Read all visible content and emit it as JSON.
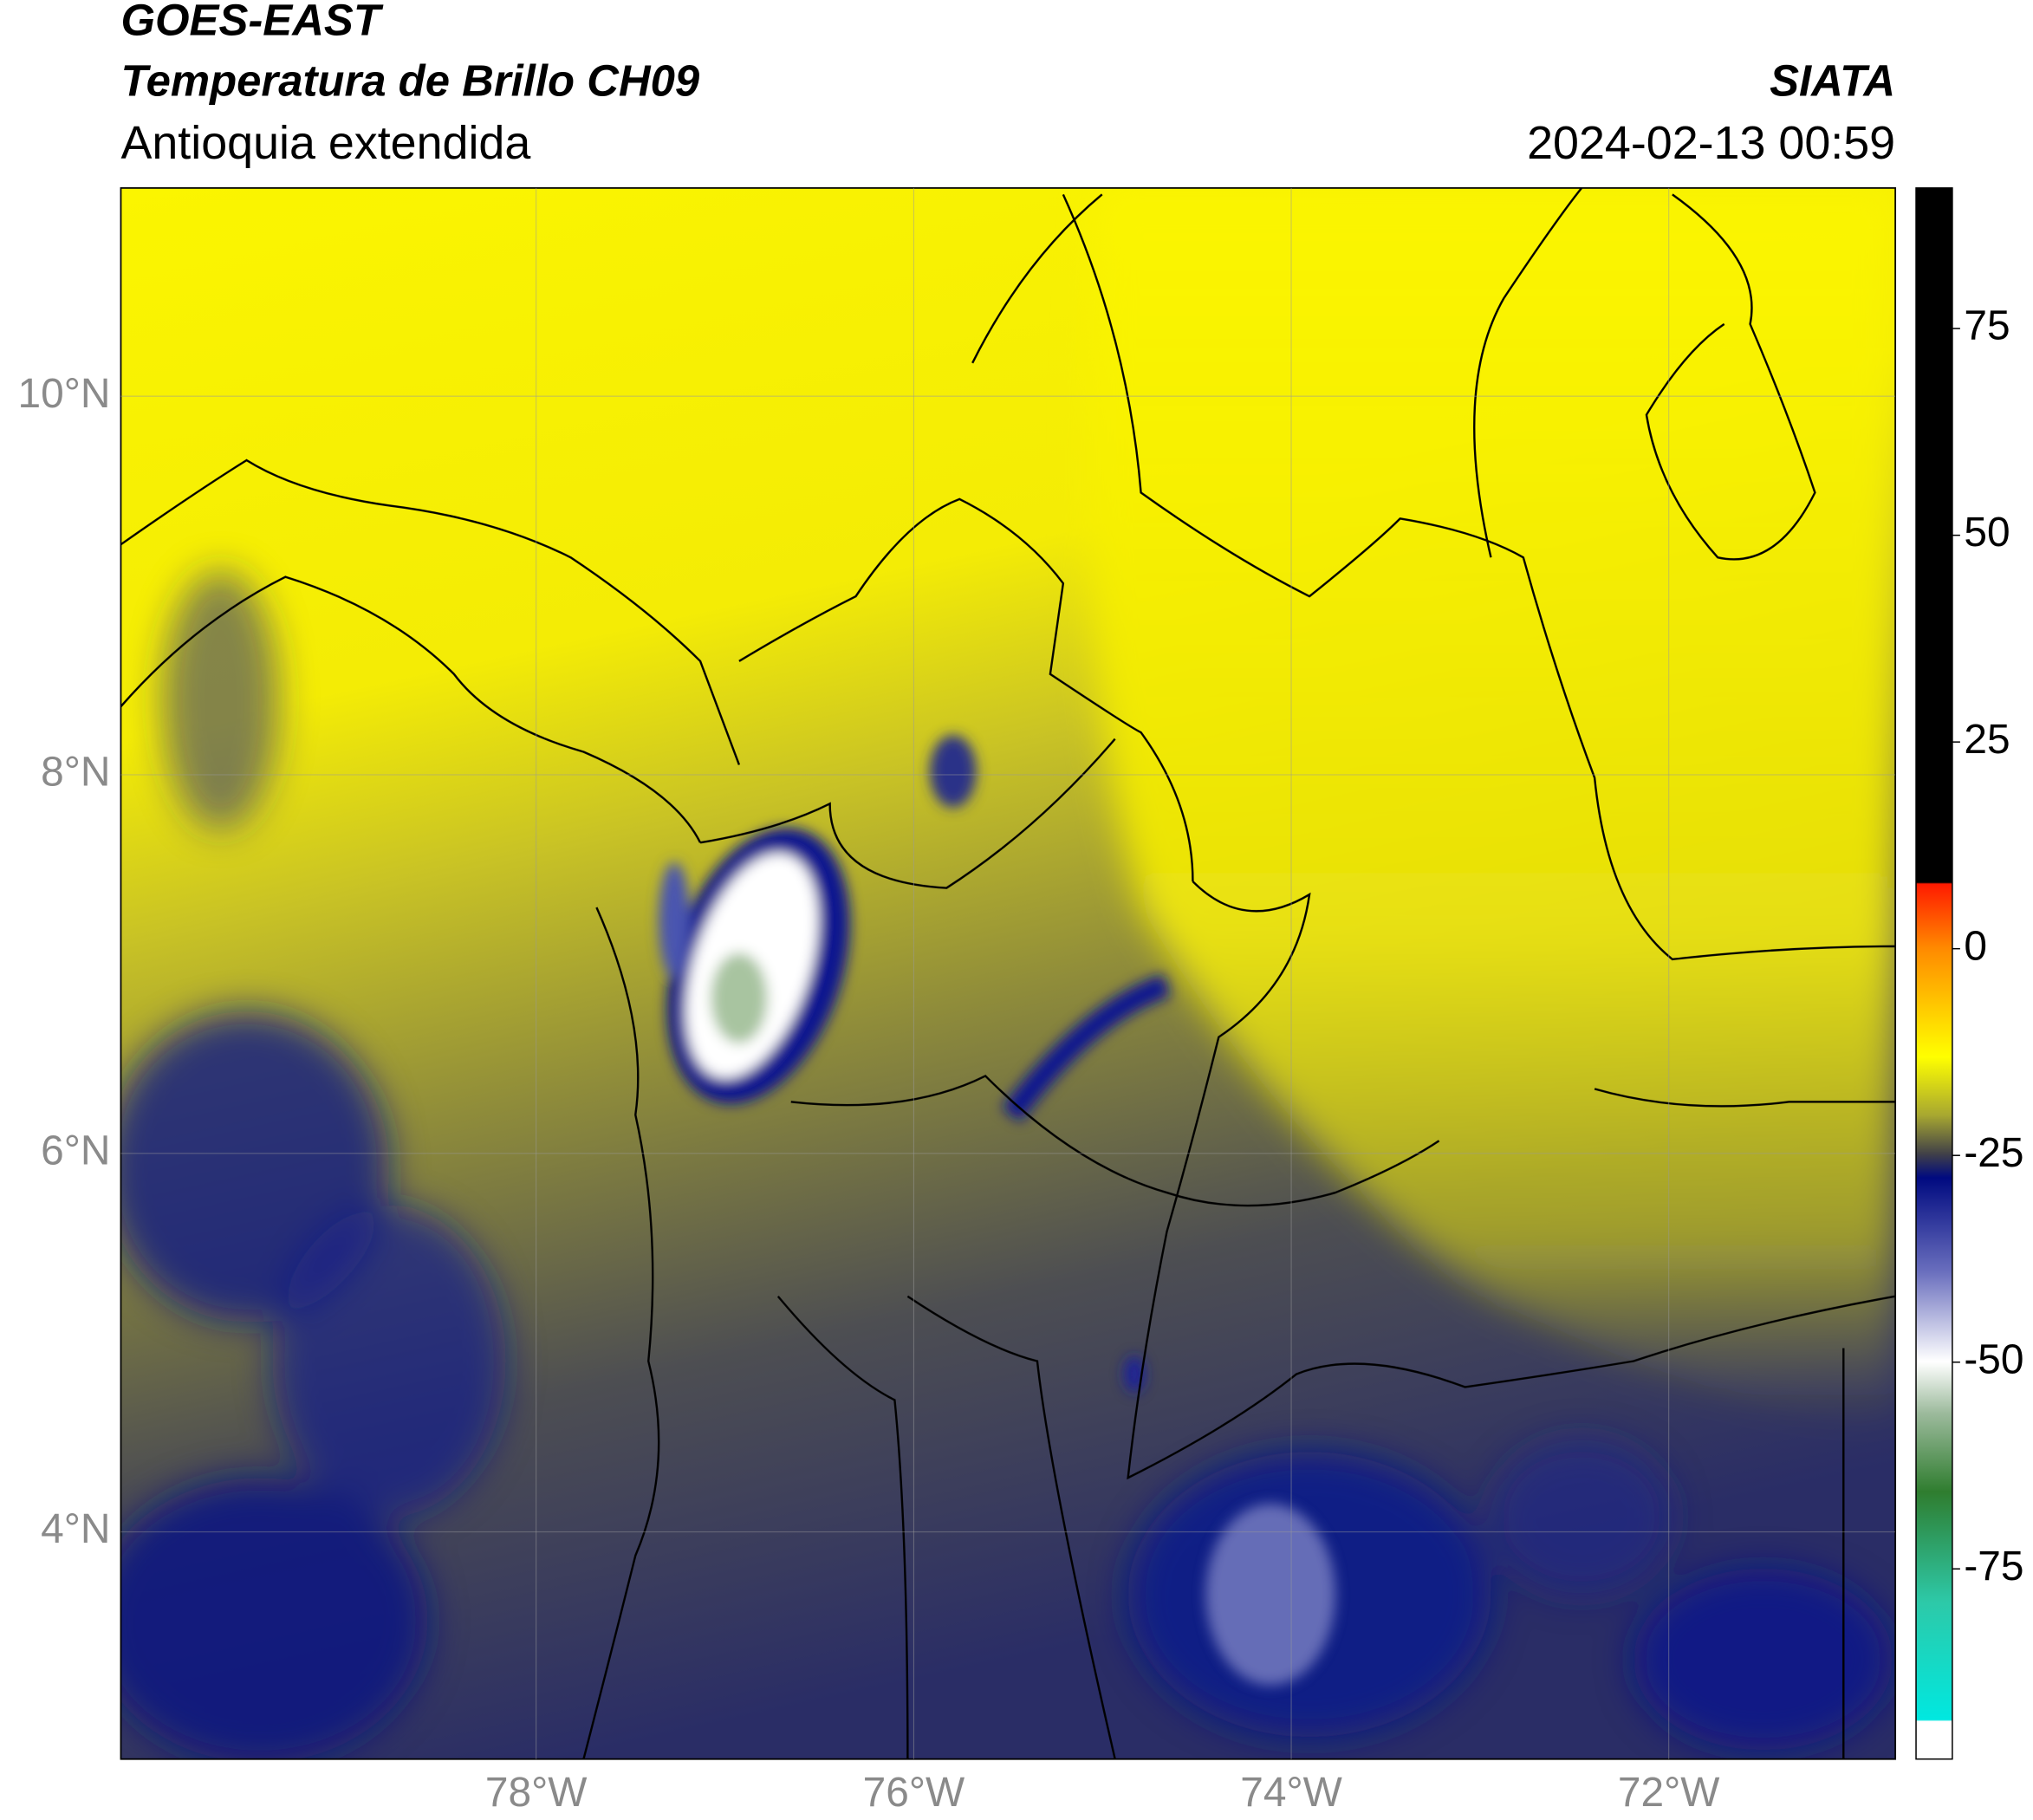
{
  "chart_data": {
    "type": "map",
    "title": "GOES-EAST",
    "subtitle": "Temperatura de Brillo CH09",
    "region": "Antioquia extendida",
    "source": "SIATA",
    "timestamp": "2024-02-13 00:59",
    "xlim": [
      -80.2,
      -70.8
    ],
    "ylim": [
      2.8,
      11.1
    ],
    "xticks": [
      {
        "value": -78,
        "label": "78°W"
      },
      {
        "value": -76,
        "label": "76°W"
      },
      {
        "value": -74,
        "label": "74°W"
      },
      {
        "value": -72,
        "label": "72°W"
      }
    ],
    "yticks": [
      {
        "value": 4,
        "label": "4°N"
      },
      {
        "value": 6,
        "label": "6°N"
      },
      {
        "value": 8,
        "label": "8°N"
      },
      {
        "value": 10,
        "label": "10°N"
      }
    ],
    "grid": true,
    "colorbar": {
      "lim": [
        -98,
        92
      ],
      "ticks": [
        75,
        50,
        25,
        0,
        -25,
        -50,
        -75
      ]
    }
  }
}
